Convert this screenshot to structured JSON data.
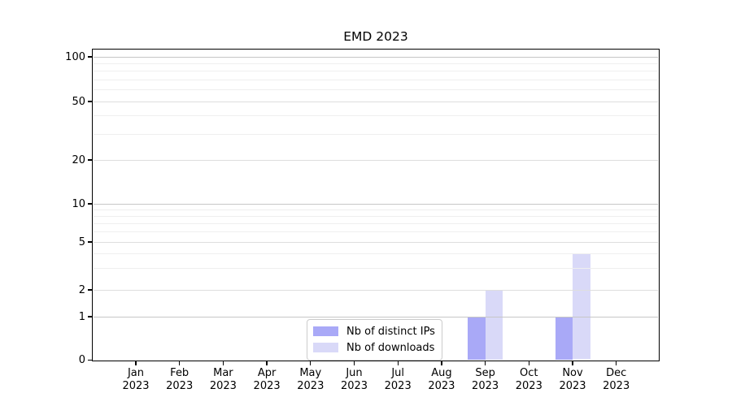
{
  "chart_data": {
    "type": "bar",
    "title": "EMD 2023",
    "xlabel": "",
    "ylabel": "",
    "categories": [
      "Jan 2023",
      "Feb 2023",
      "Mar 2023",
      "Apr 2023",
      "May 2023",
      "Jun 2023",
      "Jul 2023",
      "Aug 2023",
      "Sep 2023",
      "Oct 2023",
      "Nov 2023",
      "Dec 2023"
    ],
    "series": [
      {
        "name": "Nb of distinct IPs",
        "color": "#a9a9f7",
        "values": [
          0,
          0,
          0,
          0,
          0,
          0,
          0,
          0,
          1,
          0,
          1,
          0
        ]
      },
      {
        "name": "Nb of downloads",
        "color": "#d9d9f8",
        "values": [
          0,
          0,
          0,
          0,
          0,
          0,
          0,
          0,
          2,
          0,
          4,
          0
        ]
      }
    ],
    "yscale": "symlog",
    "ylim": [
      0,
      118
    ],
    "y_major_ticks": [
      0,
      1,
      2,
      5,
      10,
      20,
      50,
      100
    ],
    "y_minor_ticks": [
      3,
      4,
      6,
      7,
      8,
      9,
      30,
      40,
      60,
      70,
      80,
      90
    ],
    "grid": "both",
    "legend_position": "lower center"
  },
  "colors": {
    "bar_distinct_ips": "#a9a9f7",
    "bar_downloads": "#d9d9f8",
    "axis": "#000000",
    "grid_major": "#c6c6c6",
    "grid_minor": "#efefef"
  }
}
